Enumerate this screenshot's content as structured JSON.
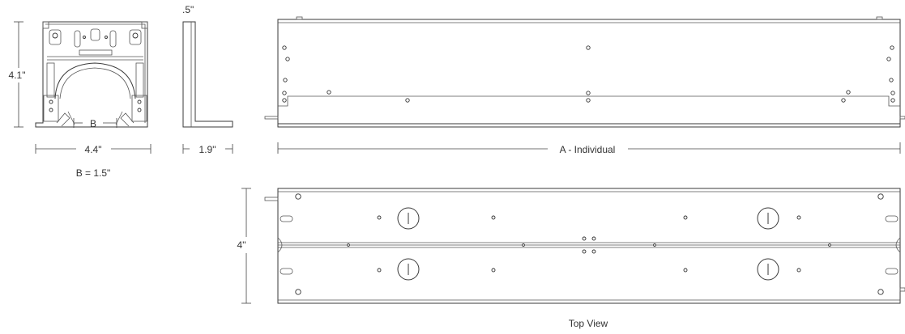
{
  "dimensions": {
    "height_end": "4.1\"",
    "width_end": "4.4\"",
    "b_label": "B",
    "b_value": "B = 1.5\"",
    "flange_top": ".5\"",
    "side_depth": "1.9\"",
    "length_individual": "A - Individual",
    "width_top": "4\""
  },
  "captions": {
    "top_view": "Top View"
  },
  "colors": {
    "line": "#3a3a3a",
    "text": "#333333"
  }
}
